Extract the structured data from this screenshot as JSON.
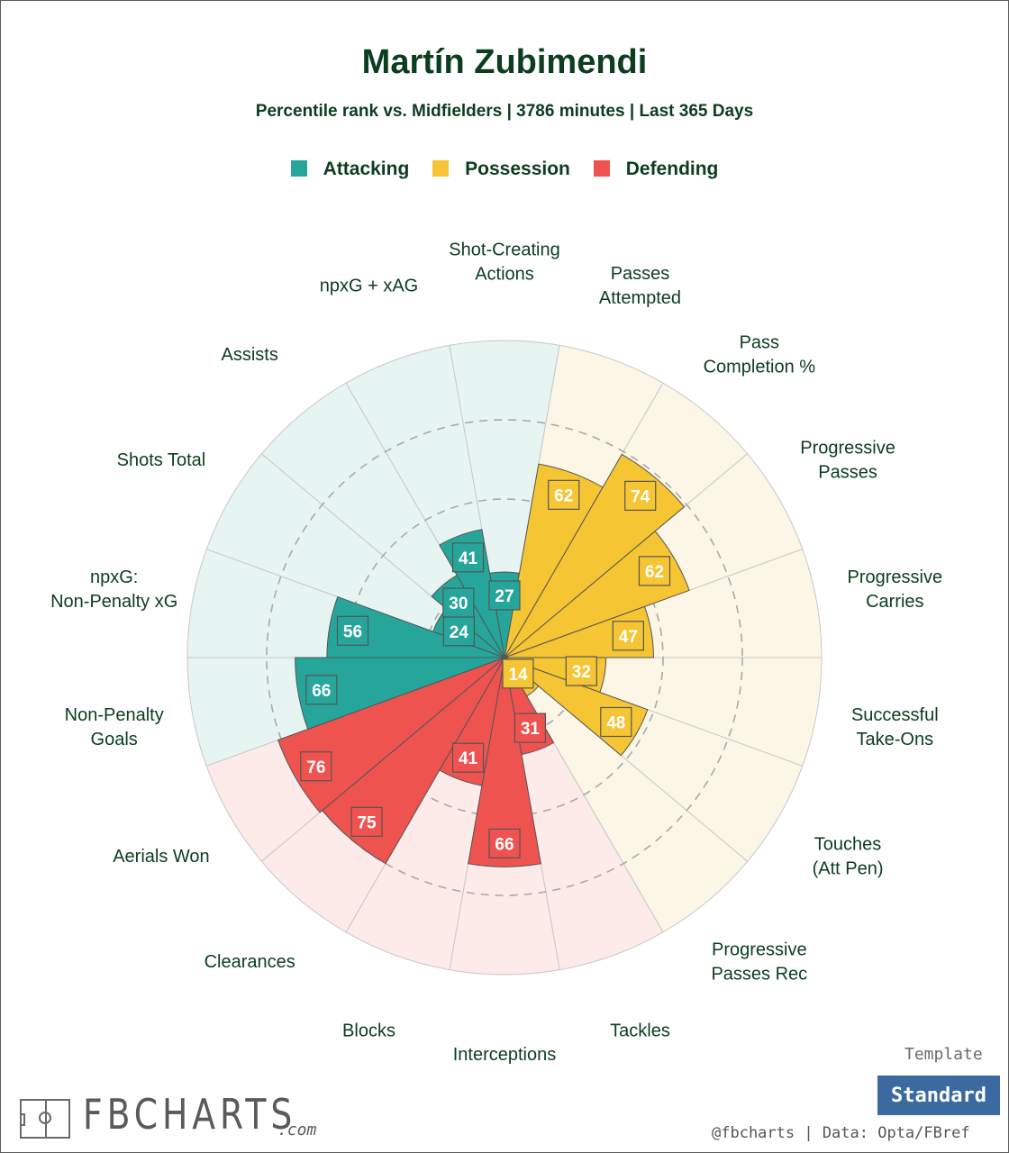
{
  "title": "Martín Zubimendi",
  "subtitle": "Percentile rank vs. Midfielders | 3786 minutes | Last 365 Days",
  "legend": [
    {
      "label": "Attacking",
      "color": "#26a69a"
    },
    {
      "label": "Possession",
      "color": "#f5c533"
    },
    {
      "label": "Defending",
      "color": "#ef5350"
    }
  ],
  "chart_data": {
    "type": "polar-bar",
    "title": "Martín Zubimendi",
    "subtitle": "Percentile rank vs. Midfielders | 3786 minutes | Last 365 Days",
    "rlim": [
      0,
      100
    ],
    "rings": [
      25,
      50,
      75
    ],
    "categories": [
      {
        "label": "Shot-Creating Actions",
        "value": 27,
        "group": "Attacking"
      },
      {
        "label": "Passes Attempted",
        "value": 62,
        "group": "Possession"
      },
      {
        "label": "Pass Completion %",
        "value": 74,
        "group": "Possession"
      },
      {
        "label": "Progressive Passes",
        "value": 62,
        "group": "Possession"
      },
      {
        "label": "Progressive Carries",
        "value": 47,
        "group": "Possession"
      },
      {
        "label": "Successful Take-Ons",
        "value": 32,
        "group": "Possession"
      },
      {
        "label": "Touches (Att Pen)",
        "value": 48,
        "group": "Possession"
      },
      {
        "label": "Progressive Passes Rec",
        "value": 14,
        "group": "Possession"
      },
      {
        "label": "Tackles",
        "value": 31,
        "group": "Defending"
      },
      {
        "label": "Interceptions",
        "value": 66,
        "group": "Defending"
      },
      {
        "label": "Blocks",
        "value": 41,
        "group": "Defending"
      },
      {
        "label": "Clearances",
        "value": 75,
        "group": "Defending"
      },
      {
        "label": "Aerials Won",
        "value": 76,
        "group": "Defending"
      },
      {
        "label": "Non-Penalty Goals",
        "value": 66,
        "group": "Attacking"
      },
      {
        "label": "npxG: Non-Penalty xG",
        "value": 56,
        "group": "Attacking"
      },
      {
        "label": "Shots Total",
        "value": 24,
        "group": "Attacking"
      },
      {
        "label": "Assists",
        "value": 30,
        "group": "Attacking"
      },
      {
        "label": "npxG + xAG",
        "value": 41,
        "group": "Attacking"
      }
    ],
    "group_colors": {
      "Attacking": {
        "bar": "#26a69a",
        "bg": "#e6f4f2"
      },
      "Possession": {
        "bar": "#f5c533",
        "bg": "#fbf6e6"
      },
      "Defending": {
        "bar": "#ef5350",
        "bg": "#fcebe9"
      }
    }
  },
  "footer": {
    "template_label": "Template",
    "template_value": "Standard",
    "credit": "@fbcharts | Data: Opta/FBref",
    "logo_text": "FBCHARTS",
    "logo_suffix": ".com"
  }
}
